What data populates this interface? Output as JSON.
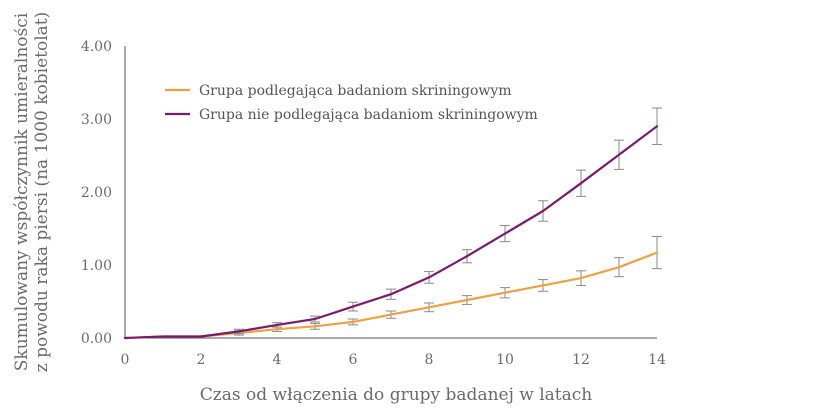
{
  "chart_data": {
    "type": "line",
    "xlabel": "Czas od włączenia do grupy badanej w latach",
    "ylabel_lines": [
      "Skumulowany współczynnik umieralności",
      "z powodu raka piersi (na 1000 kobietolat)"
    ],
    "x_ticks": [
      "0",
      "2",
      "4",
      "6",
      "8",
      "10",
      "12",
      "14"
    ],
    "y_ticks": [
      "0.00",
      "1.00",
      "2.00",
      "3.00",
      "4.00"
    ],
    "xlim": [
      0,
      14
    ],
    "ylim": [
      0,
      4
    ],
    "grid": false,
    "legend_position": "top-left",
    "x": [
      0,
      1,
      2,
      3,
      4,
      5,
      6,
      7,
      8,
      9,
      10,
      11,
      12,
      13,
      14
    ],
    "series": [
      {
        "name": "Grupa podlegająca badaniom skriningowym",
        "color": "#f0a040",
        "values": [
          0,
          0.02,
          0.02,
          0.07,
          0.12,
          0.16,
          0.22,
          0.32,
          0.42,
          0.52,
          0.62,
          0.72,
          0.82,
          0.97,
          1.17
        ],
        "err": [
          0,
          0,
          0,
          0.03,
          0.03,
          0.04,
          0.04,
          0.05,
          0.06,
          0.06,
          0.07,
          0.08,
          0.1,
          0.13,
          0.22
        ]
      },
      {
        "name": "Grupa nie podlegająca badaniom skriningowym",
        "color": "#7a1a6e",
        "values": [
          0,
          0.02,
          0.02,
          0.09,
          0.18,
          0.26,
          0.43,
          0.6,
          0.83,
          1.12,
          1.43,
          1.74,
          2.12,
          2.51,
          2.9
        ],
        "err": [
          0,
          0,
          0,
          0.03,
          0.03,
          0.04,
          0.06,
          0.07,
          0.08,
          0.09,
          0.11,
          0.14,
          0.18,
          0.2,
          0.25
        ]
      }
    ]
  }
}
